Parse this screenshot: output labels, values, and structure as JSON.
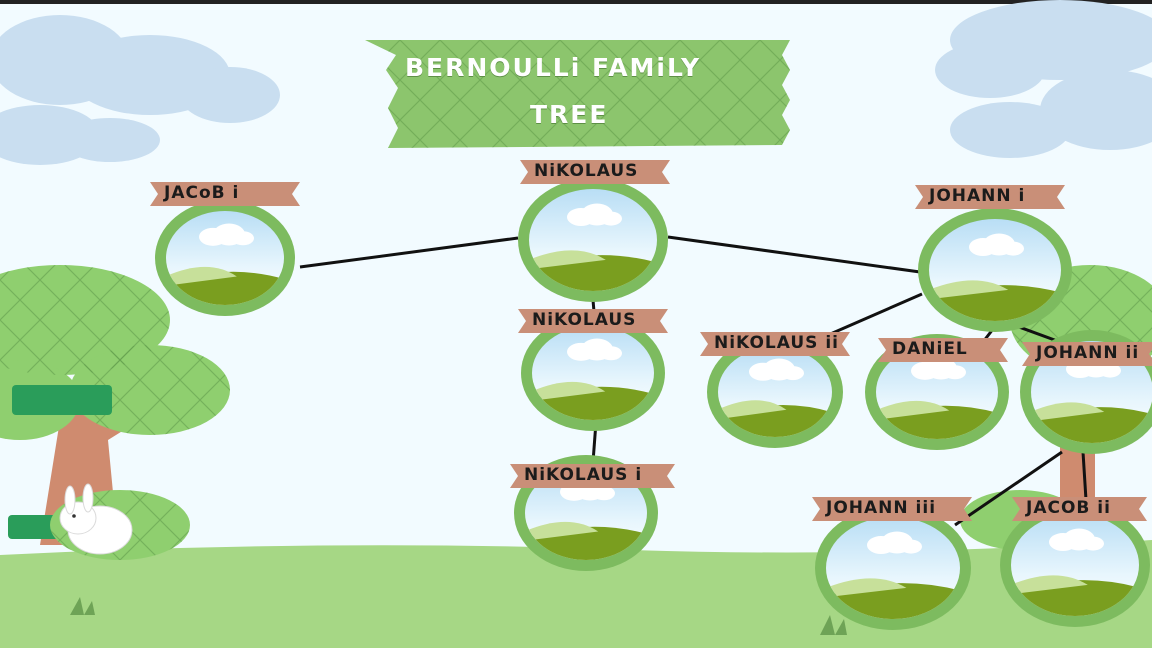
{
  "title": {
    "line1": "BERNOULLi FAMiLY",
    "line2": "TREE"
  },
  "members": {
    "jacob_i": "JACoB i",
    "nikolaus_top": "NiKOLAUS",
    "johann_i": "JOHANN i",
    "nikolaus_mid": "NiKOLAUS",
    "nikolaus_ii": "NiKOLAUS ii",
    "daniel": "DANiEL",
    "johann_ii": "JOHANN ii",
    "nikolaus_i": "NiKOLAUS i",
    "johann_iii": "JOHANN iii",
    "jacob_ii": "JACOB ii"
  },
  "colors": {
    "sky": "#f2fbff",
    "grass": "#a6d785",
    "frame": "#7dbb5f",
    "ribbon": "#c98f78",
    "title_banner": "#8cc56d"
  }
}
